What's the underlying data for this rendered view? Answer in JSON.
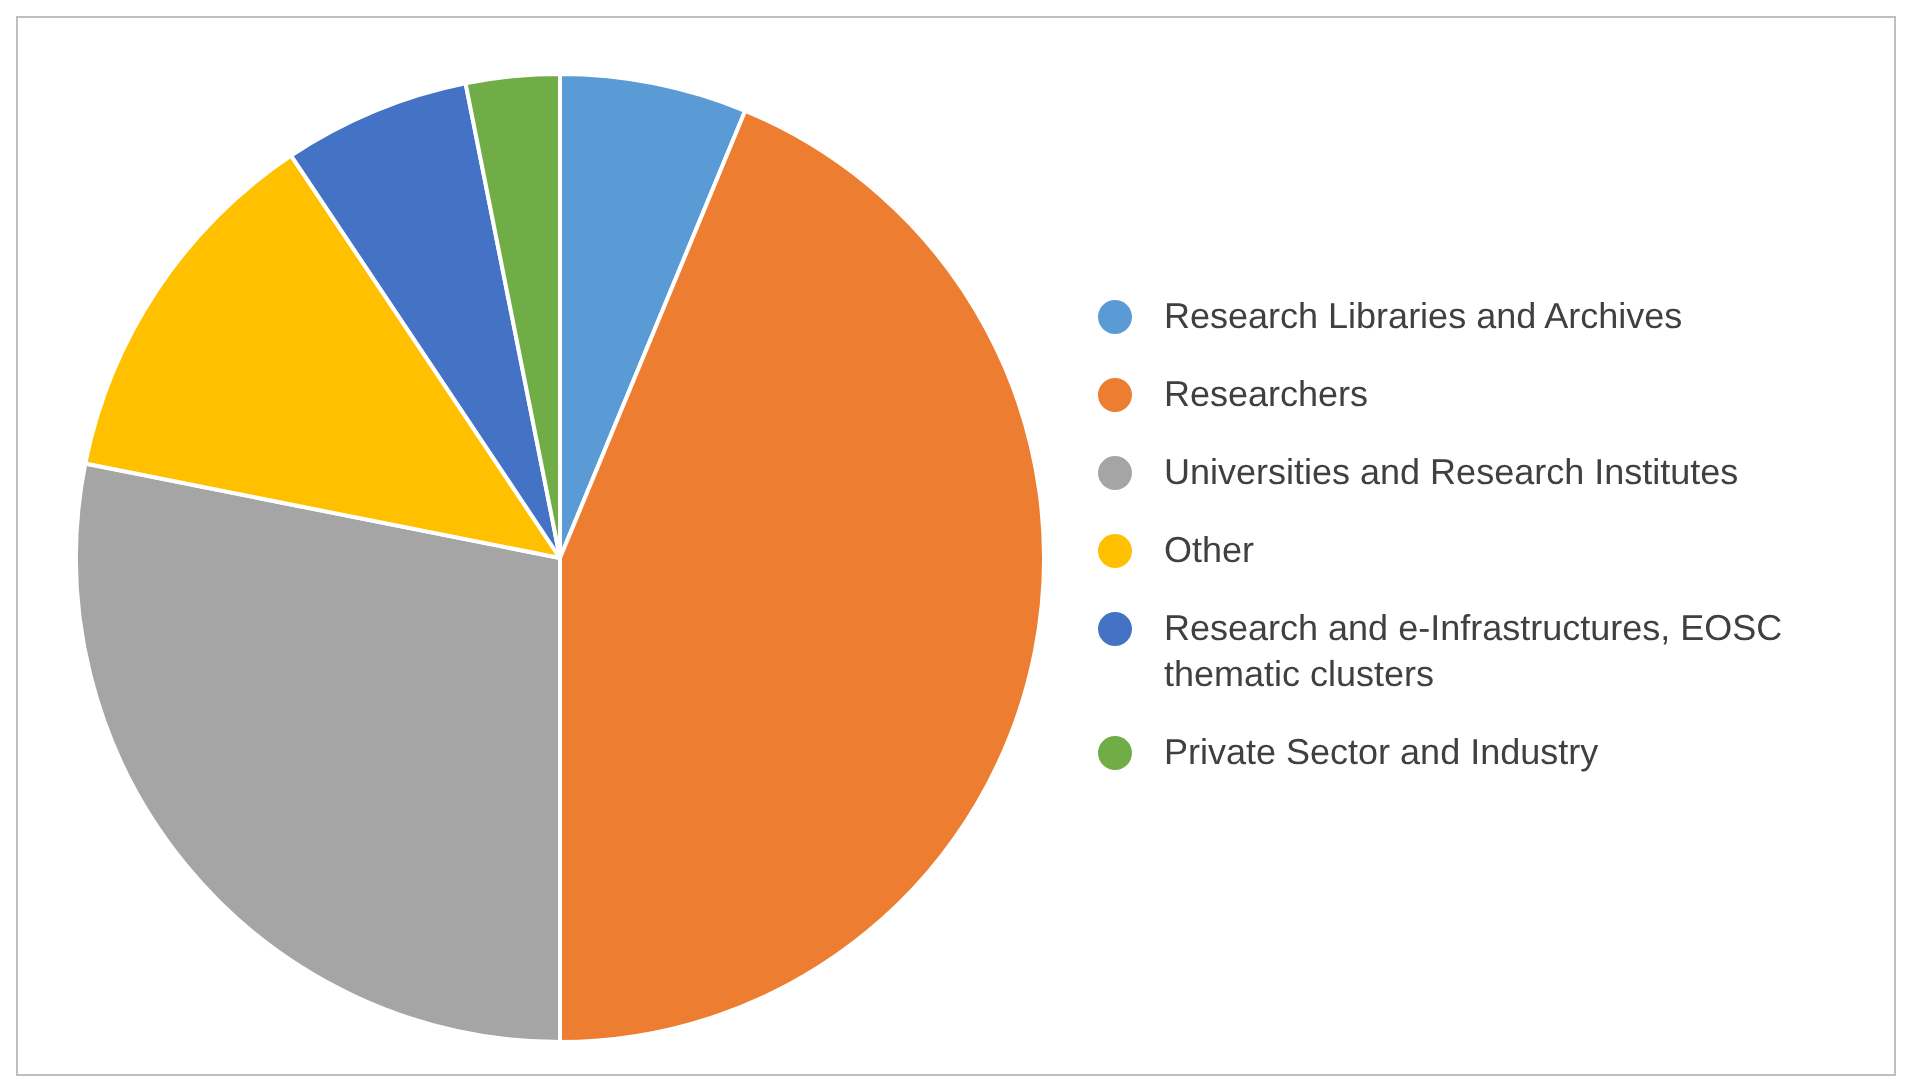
{
  "chart_data": {
    "type": "pie",
    "categories": [
      "Research Libraries and Archives",
      "Researchers",
      "Universities and Research Institutes",
      "Other",
      "Research and e-Infrastructures, EOSC thematic clusters",
      "Private Sector and Industry"
    ],
    "values": [
      6.25,
      43.75,
      28.125,
      12.5,
      6.25,
      3.125
    ],
    "colors": [
      "#5b9bd5",
      "#ed7d31",
      "#a5a5a5",
      "#ffc000",
      "#4472c4",
      "#70ad47"
    ],
    "legend": "right"
  }
}
